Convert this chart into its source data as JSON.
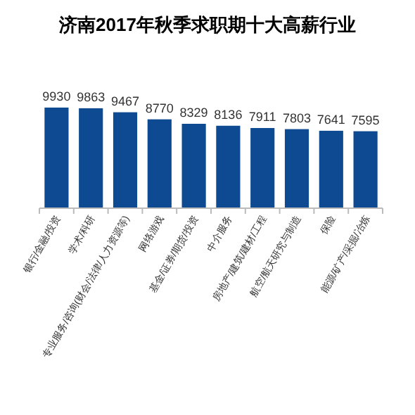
{
  "chart_data": {
    "type": "bar",
    "title": "济南2017年秋季求职期十大高薪行业",
    "categories": [
      "银行/金融/投资",
      "学术/科研",
      "专业服务/咨询(财会/法律/人力资源等)",
      "网络游戏",
      "基金/证券/期货/投资",
      "中介服务",
      "房地产/建筑/建材/工程",
      "航空/航天研究与制造",
      "保险",
      "能源/矿产/采掘/冶炼"
    ],
    "values": [
      9930,
      9863,
      9467,
      8770,
      8329,
      8136,
      7911,
      7803,
      7641,
      7595
    ],
    "color": "#0e4a92",
    "data_labels": true
  }
}
